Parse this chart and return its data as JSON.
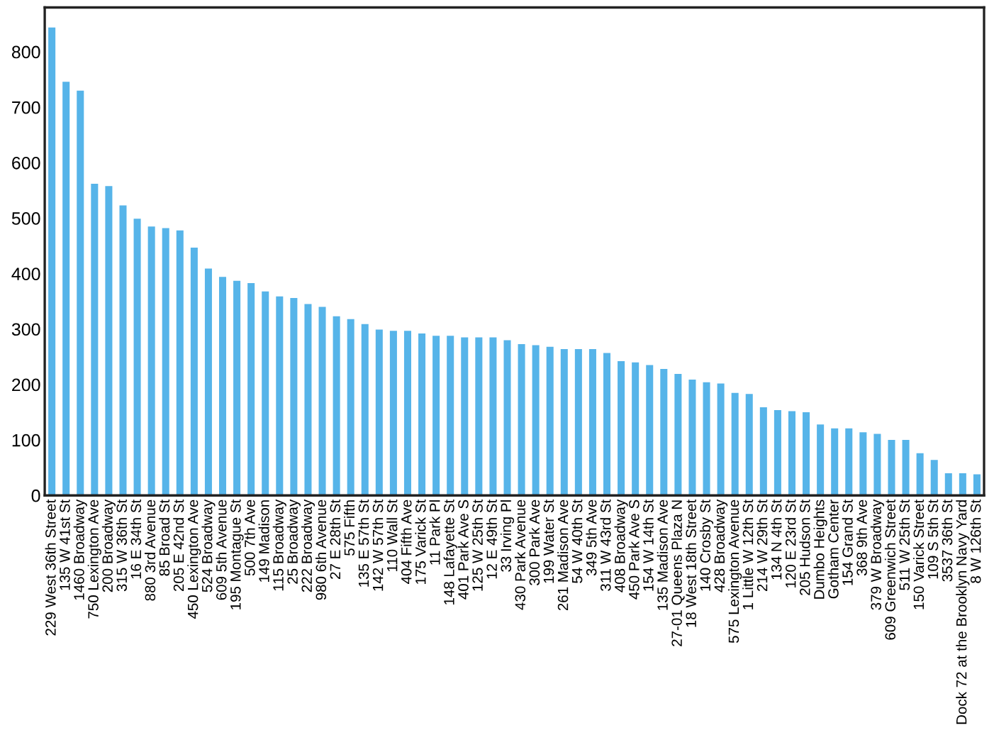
{
  "chart_data": {
    "type": "bar",
    "color": "#56b4e9",
    "categories": [
      "229 West 36th Street",
      "135 W 41st St",
      "1460 Broadway",
      "750 Lexington Ave",
      "200 Broadway",
      "315 W 36th St",
      "16 E 34th St",
      "880 3rd Avenue",
      "85 Broad St",
      "205 E 42nd St",
      "450 Lexington Ave",
      "524 Broadway",
      "609 5th Avenue",
      "195 Montague St",
      "500 7th Ave",
      "149 Madison",
      "115 Broadway",
      "25 Broadway",
      "222 Broadway",
      "980 6th Avenue",
      "27 E 28th St",
      "575 Fifth",
      "135 E 57th St",
      "142 W 57th St",
      "110 Wall St",
      "404 Fifth Ave",
      "175 Varick St",
      "11 Park Pl",
      "148 Lafayette St",
      "401 Park Ave S",
      "125 W 25th St",
      "12 E 49th St",
      "33 Irving Pl",
      "430 Park Avenue",
      "300 Park Ave",
      "199 Water St",
      "261 Madison Ave",
      "54 W 40th St",
      "349 5th Ave",
      "311 W 43rd St",
      "408 Broadway",
      "450 Park Ave S",
      "154 W 14th St",
      "135 Madison Ave",
      "27-01 Queens Plaza N",
      "18 West 18th Street",
      "140 Crosby St",
      "428 Broadway",
      "575 Lexington Avenue",
      "1 Little W 12th St",
      "214 W 29th St",
      "134 N 4th St",
      "120 E 23rd St",
      "205 Hudson St",
      "Dumbo Heights",
      "Gotham Center",
      "154 Grand St",
      "368 9th Ave",
      "379 W Broadway",
      "609 Greenwich Street",
      "511 W 25th St",
      "150 Varick Street",
      "109 S 5th St",
      "3537 36th St",
      "Dock 72 at the Brooklyn Navy Yard",
      "8 W 126th St"
    ],
    "values": [
      844,
      746,
      730,
      562,
      558,
      523,
      499,
      485,
      482,
      478,
      447,
      409,
      394,
      387,
      383,
      368,
      359,
      356,
      345,
      340,
      323,
      318,
      309,
      299,
      297,
      297,
      292,
      288,
      288,
      285,
      285,
      285,
      280,
      273,
      271,
      268,
      264,
      264,
      264,
      257,
      242,
      240,
      235,
      228,
      219,
      209,
      204,
      202,
      185,
      183,
      159,
      154,
      152,
      150,
      128,
      121,
      121,
      114,
      111,
      100,
      100,
      76,
      64,
      40,
      40,
      38
    ],
    "ylim": [
      0,
      880
    ],
    "yticks": [
      0,
      100,
      200,
      300,
      400,
      500,
      600,
      700,
      800
    ],
    "grid": false
  }
}
